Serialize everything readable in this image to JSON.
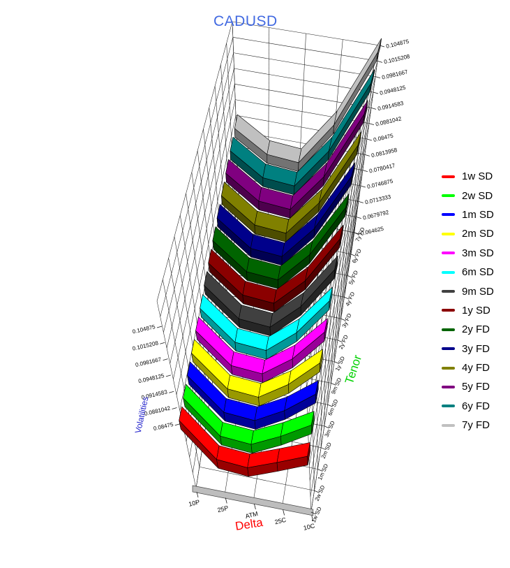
{
  "title": {
    "text": "CADUSD",
    "color": "#4169e1"
  },
  "axes": {
    "delta": {
      "label": "Delta",
      "color": "#ff0000",
      "ticks": [
        "10P",
        "25P",
        "ATM",
        "25C",
        "10C"
      ]
    },
    "tenor": {
      "label": "Tenor",
      "color": "#00d200"
    },
    "vol": {
      "label": "Volatilities",
      "color": "#2222cc",
      "ticks": [
        "0.104875",
        "0.1015208",
        "0.0981667",
        "0.0948125",
        "0.0914583",
        "0.0881042",
        "0.08475",
        "0.0813958",
        "0.0780417",
        "0.0746875",
        "0.0713333",
        "0.0679792",
        "0.064625"
      ],
      "min": 0.064625,
      "max": 0.104875
    }
  },
  "chart_data": {
    "type": "ribbon3d",
    "title": "CADUSD",
    "xlabel": "Delta",
    "ylabel": "Tenor",
    "zlabel": "Volatilities",
    "categories": [
      "10P",
      "25P",
      "ATM",
      "25C",
      "10C"
    ],
    "zlim": [
      0.064625,
      0.104875
    ],
    "grid": true,
    "legend_position": "right",
    "series": [
      {
        "name": "1w SD",
        "color": "#ff0000",
        "values": [
          0.0807,
          0.0736,
          0.0731,
          0.0755,
          0.0781
        ]
      },
      {
        "name": "2w SD",
        "color": "#00ff00",
        "values": [
          0.0809,
          0.074,
          0.0735,
          0.0765,
          0.0802
        ]
      },
      {
        "name": "1m SD",
        "color": "#0000ff",
        "values": [
          0.0811,
          0.0745,
          0.074,
          0.0774,
          0.0822
        ]
      },
      {
        "name": "2m SD",
        "color": "#ffff00",
        "values": [
          0.0813,
          0.0749,
          0.0744,
          0.0784,
          0.0843
        ]
      },
      {
        "name": "3m SD",
        "color": "#ff00ff",
        "values": [
          0.0815,
          0.0753,
          0.0748,
          0.0793,
          0.0863
        ]
      },
      {
        "name": "6m SD",
        "color": "#00ffff",
        "values": [
          0.0817,
          0.0757,
          0.0752,
          0.0803,
          0.0884
        ]
      },
      {
        "name": "9m SD",
        "color": "#404040",
        "values": [
          0.082,
          0.0761,
          0.0756,
          0.0813,
          0.0905
        ]
      },
      {
        "name": "1y SD",
        "color": "#8b0000",
        "values": [
          0.0822,
          0.0766,
          0.0761,
          0.0822,
          0.0925
        ]
      },
      {
        "name": "2y FD",
        "color": "#006400",
        "values": [
          0.0824,
          0.077,
          0.0765,
          0.0832,
          0.0946
        ]
      },
      {
        "name": "3y FD",
        "color": "#00008b",
        "values": [
          0.0826,
          0.0774,
          0.0769,
          0.0842,
          0.0967
        ]
      },
      {
        "name": "4y FD",
        "color": "#808000",
        "values": [
          0.0828,
          0.0778,
          0.0773,
          0.0851,
          0.0987
        ]
      },
      {
        "name": "5y FD",
        "color": "#800080",
        "values": [
          0.083,
          0.0783,
          0.0778,
          0.0861,
          0.1008
        ]
      },
      {
        "name": "6y FD",
        "color": "#008080",
        "values": [
          0.0832,
          0.0787,
          0.0782,
          0.087,
          0.1028
        ]
      },
      {
        "name": "7y FD",
        "color": "#c0c0c0",
        "values": [
          0.0834,
          0.0791,
          0.0786,
          0.088,
          0.104875
        ]
      }
    ]
  }
}
